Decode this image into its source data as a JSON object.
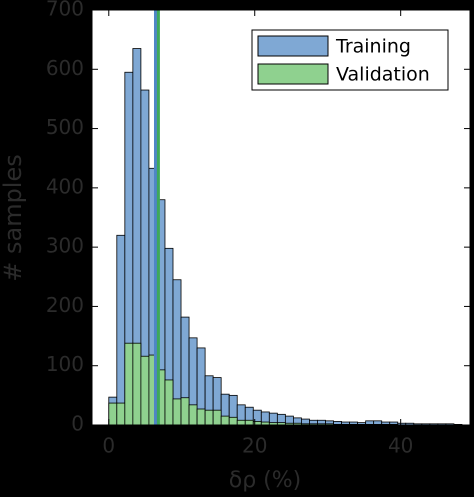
{
  "chart_data": {
    "type": "histogram",
    "xlabel": "δρ (%)",
    "ylabel": "# samples",
    "bins": [
      0,
      1.1,
      2.2,
      3.3,
      4.4,
      5.5,
      6.6,
      7.7,
      8.8,
      9.9,
      11,
      12.1,
      13.2,
      14.3,
      15.4,
      16.5,
      17.6,
      18.7,
      19.8,
      20.9,
      22,
      23.1,
      24.2,
      25.3,
      26.4,
      27.5,
      28.6,
      29.7,
      30.8,
      31.9,
      33,
      34.1,
      35.2,
      36.3,
      37.4,
      38.5,
      39.6,
      40.7,
      41.8,
      42.9,
      44,
      45.1,
      46.2,
      47.3,
      48.4
    ],
    "series": [
      {
        "name": "Training",
        "color": "#7fa8d4",
        "values": [
          47,
          320,
          595,
          635,
          565,
          433,
          380,
          298,
          245,
          182,
          147,
          130,
          83,
          80,
          52,
          50,
          34,
          30,
          25,
          22,
          20,
          18,
          15,
          12,
          10,
          8,
          8,
          7,
          6,
          5,
          5,
          4,
          7,
          7,
          5,
          5,
          3,
          3,
          2,
          2,
          2,
          2,
          2,
          1
        ]
      },
      {
        "name": "Validation",
        "color": "#8fd18f",
        "values": [
          37,
          37,
          138,
          138,
          116,
          118,
          93,
          76,
          44,
          46,
          34,
          27,
          25,
          25,
          15,
          13,
          8,
          8,
          6,
          5,
          4,
          4,
          3,
          3,
          2,
          2,
          2,
          2,
          1,
          1,
          1,
          1,
          1,
          1,
          1,
          1,
          0,
          0,
          0,
          0,
          0,
          0,
          0,
          0
        ]
      }
    ],
    "vlines": [
      {
        "value": 6.4,
        "color": "#4f86c6"
      },
      {
        "value": 6.8,
        "color": "#3ea85a"
      }
    ],
    "xlim": [
      -2.3,
      49.5
    ],
    "ylim": [
      0,
      700
    ],
    "xticks": [
      0,
      20,
      40
    ],
    "yticks": [
      0,
      100,
      200,
      300,
      400,
      500,
      600,
      700
    ],
    "legend": "upper right"
  }
}
